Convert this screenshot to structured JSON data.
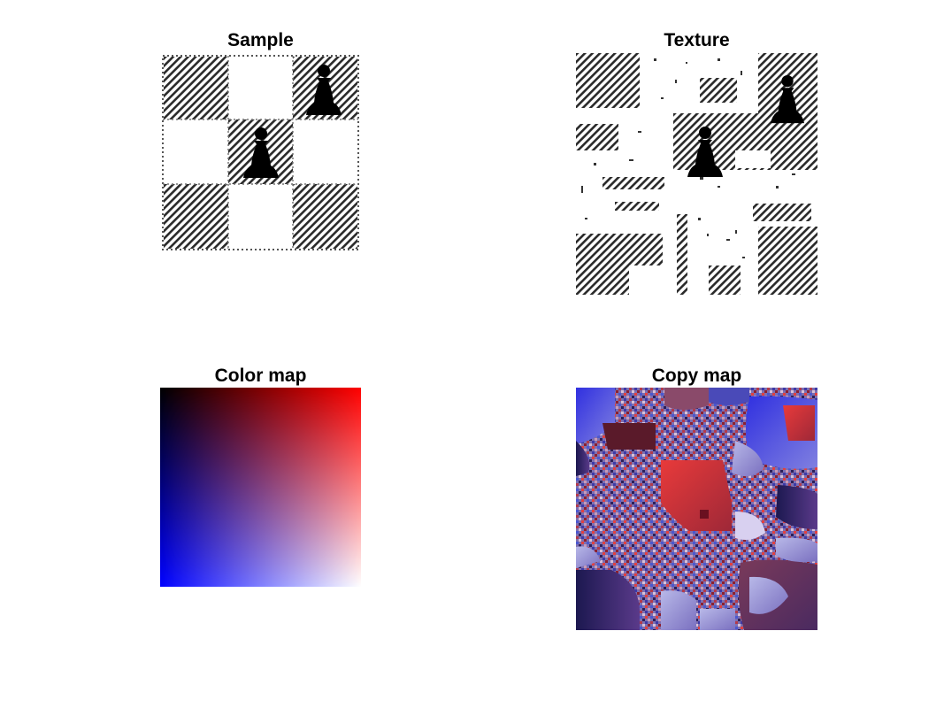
{
  "figure": {
    "panels": [
      {
        "title": "Sample"
      },
      {
        "title": "Texture"
      },
      {
        "title": "Color map"
      },
      {
        "title": "Copy map"
      }
    ]
  },
  "colors": {
    "background": "#ffffff",
    "hatch": "#2a2a2a",
    "pawn": "#000000",
    "colormap_top_left": "#000000",
    "colormap_top_right": "#ff0000",
    "colormap_bottom_left": "#0000ff",
    "colormap_bottom_right": "#ffffff"
  }
}
